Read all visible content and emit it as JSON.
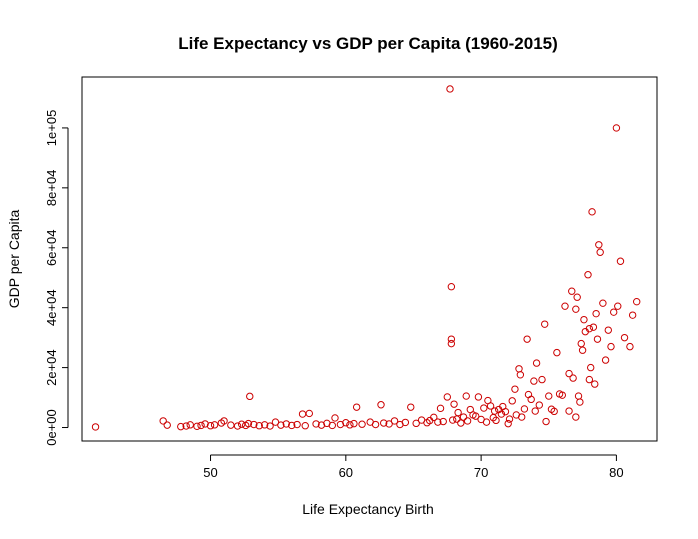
{
  "chart_data": {
    "type": "scatter",
    "title": "Life Expectancy  vs GDP per Capita (1960-2015)",
    "xlabel": "Life Expectancy Birth",
    "ylabel": "GDP per Capita",
    "xlim": [
      40.5,
      83.0
    ],
    "ylim": [
      -4500,
      117000
    ],
    "x_ticks": [
      50,
      60,
      70,
      80
    ],
    "x_tick_labels": [
      "50",
      "60",
      "70",
      "80"
    ],
    "y_ticks": [
      0,
      20000,
      40000,
      60000,
      80000,
      100000
    ],
    "y_tick_labels": [
      "0e+00",
      "2e+04",
      "4e+04",
      "6e+04",
      "8e+04",
      "1e+05"
    ],
    "grid": false,
    "legend": "none",
    "color": "#cc0000",
    "points": [
      [
        41.5,
        200
      ],
      [
        46.5,
        2200
      ],
      [
        46.8,
        800
      ],
      [
        47.8,
        300
      ],
      [
        48.2,
        500
      ],
      [
        48.5,
        900
      ],
      [
        49.0,
        400
      ],
      [
        49.3,
        700
      ],
      [
        49.6,
        1200
      ],
      [
        50.0,
        600
      ],
      [
        50.3,
        900
      ],
      [
        50.8,
        1500
      ],
      [
        51.0,
        2200
      ],
      [
        51.5,
        800
      ],
      [
        52.0,
        500
      ],
      [
        52.3,
        1100
      ],
      [
        52.6,
        700
      ],
      [
        52.8,
        1300
      ],
      [
        52.9,
        10400
      ],
      [
        53.2,
        1000
      ],
      [
        53.6,
        600
      ],
      [
        54.0,
        900
      ],
      [
        54.4,
        500
      ],
      [
        54.8,
        1800
      ],
      [
        55.2,
        800
      ],
      [
        55.6,
        1200
      ],
      [
        56.0,
        700
      ],
      [
        56.4,
        1000
      ],
      [
        56.8,
        4500
      ],
      [
        57.0,
        600
      ],
      [
        57.3,
        4700
      ],
      [
        57.8,
        1200
      ],
      [
        58.2,
        800
      ],
      [
        58.6,
        1400
      ],
      [
        59.0,
        700
      ],
      [
        59.2,
        3200
      ],
      [
        59.6,
        1000
      ],
      [
        60.0,
        1600
      ],
      [
        60.3,
        900
      ],
      [
        60.6,
        1300
      ],
      [
        60.8,
        6800
      ],
      [
        61.2,
        1100
      ],
      [
        61.8,
        1800
      ],
      [
        62.2,
        1000
      ],
      [
        62.6,
        7600
      ],
      [
        62.8,
        1500
      ],
      [
        63.2,
        1200
      ],
      [
        63.6,
        2200
      ],
      [
        64.0,
        1000
      ],
      [
        64.4,
        1700
      ],
      [
        64.8,
        6800
      ],
      [
        65.2,
        1400
      ],
      [
        65.6,
        2500
      ],
      [
        66.0,
        1600
      ],
      [
        66.2,
        2300
      ],
      [
        66.5,
        3400
      ],
      [
        66.8,
        1800
      ],
      [
        67.0,
        6400
      ],
      [
        67.2,
        2000
      ],
      [
        67.5,
        10200
      ],
      [
        67.7,
        113000
      ],
      [
        67.8,
        47000
      ],
      [
        67.8,
        29500
      ],
      [
        67.8,
        28000
      ],
      [
        67.9,
        2500
      ],
      [
        68.0,
        7800
      ],
      [
        68.2,
        2800
      ],
      [
        68.3,
        5000
      ],
      [
        68.5,
        1500
      ],
      [
        68.7,
        3500
      ],
      [
        68.9,
        10500
      ],
      [
        69.0,
        2200
      ],
      [
        69.2,
        6000
      ],
      [
        69.4,
        4200
      ],
      [
        69.6,
        3800
      ],
      [
        69.8,
        10200
      ],
      [
        70.0,
        2700
      ],
      [
        70.2,
        6500
      ],
      [
        70.4,
        1800
      ],
      [
        70.5,
        9000
      ],
      [
        70.7,
        7200
      ],
      [
        70.9,
        3300
      ],
      [
        71.0,
        5500
      ],
      [
        71.1,
        2400
      ],
      [
        71.3,
        6000
      ],
      [
        71.5,
        4500
      ],
      [
        71.6,
        7000
      ],
      [
        71.8,
        5300
      ],
      [
        72.0,
        1300
      ],
      [
        72.1,
        2800
      ],
      [
        72.3,
        8900
      ],
      [
        72.5,
        12800
      ],
      [
        72.6,
        4200
      ],
      [
        72.8,
        19600
      ],
      [
        72.9,
        17600
      ],
      [
        73.0,
        3500
      ],
      [
        73.2,
        6200
      ],
      [
        73.4,
        29500
      ],
      [
        73.5,
        11000
      ],
      [
        73.7,
        9400
      ],
      [
        73.9,
        15500
      ],
      [
        74.0,
        5500
      ],
      [
        74.1,
        21500
      ],
      [
        74.3,
        7500
      ],
      [
        74.5,
        16000
      ],
      [
        74.7,
        34500
      ],
      [
        74.8,
        2000
      ],
      [
        75.0,
        10500
      ],
      [
        75.2,
        6100
      ],
      [
        75.4,
        5400
      ],
      [
        75.6,
        25000
      ],
      [
        75.8,
        11200
      ],
      [
        76.0,
        10800
      ],
      [
        76.2,
        40500
      ],
      [
        76.5,
        18000
      ],
      [
        76.7,
        45500
      ],
      [
        76.8,
        16500
      ],
      [
        77.0,
        39500
      ],
      [
        77.1,
        43500
      ],
      [
        77.2,
        10500
      ],
      [
        77.3,
        8500
      ],
      [
        77.4,
        28000
      ],
      [
        77.5,
        25800
      ],
      [
        77.6,
        36000
      ],
      [
        77.7,
        32000
      ],
      [
        77.9,
        51000
      ],
      [
        78.0,
        33000
      ],
      [
        78.1,
        20000
      ],
      [
        78.2,
        72000
      ],
      [
        78.3,
        33500
      ],
      [
        78.4,
        14500
      ],
      [
        78.5,
        38000
      ],
      [
        78.6,
        29500
      ],
      [
        78.7,
        61000
      ],
      [
        78.8,
        58500
      ],
      [
        79.0,
        41500
      ],
      [
        79.2,
        22500
      ],
      [
        79.4,
        32500
      ],
      [
        79.6,
        27000
      ],
      [
        79.8,
        38500
      ],
      [
        80.0,
        100000
      ],
      [
        80.1,
        40500
      ],
      [
        80.3,
        55500
      ],
      [
        80.6,
        30000
      ],
      [
        81.0,
        27000
      ],
      [
        81.2,
        37500
      ],
      [
        81.5,
        42000
      ],
      [
        78.0,
        16000
      ],
      [
        77.0,
        3500
      ],
      [
        76.5,
        5500
      ]
    ]
  }
}
